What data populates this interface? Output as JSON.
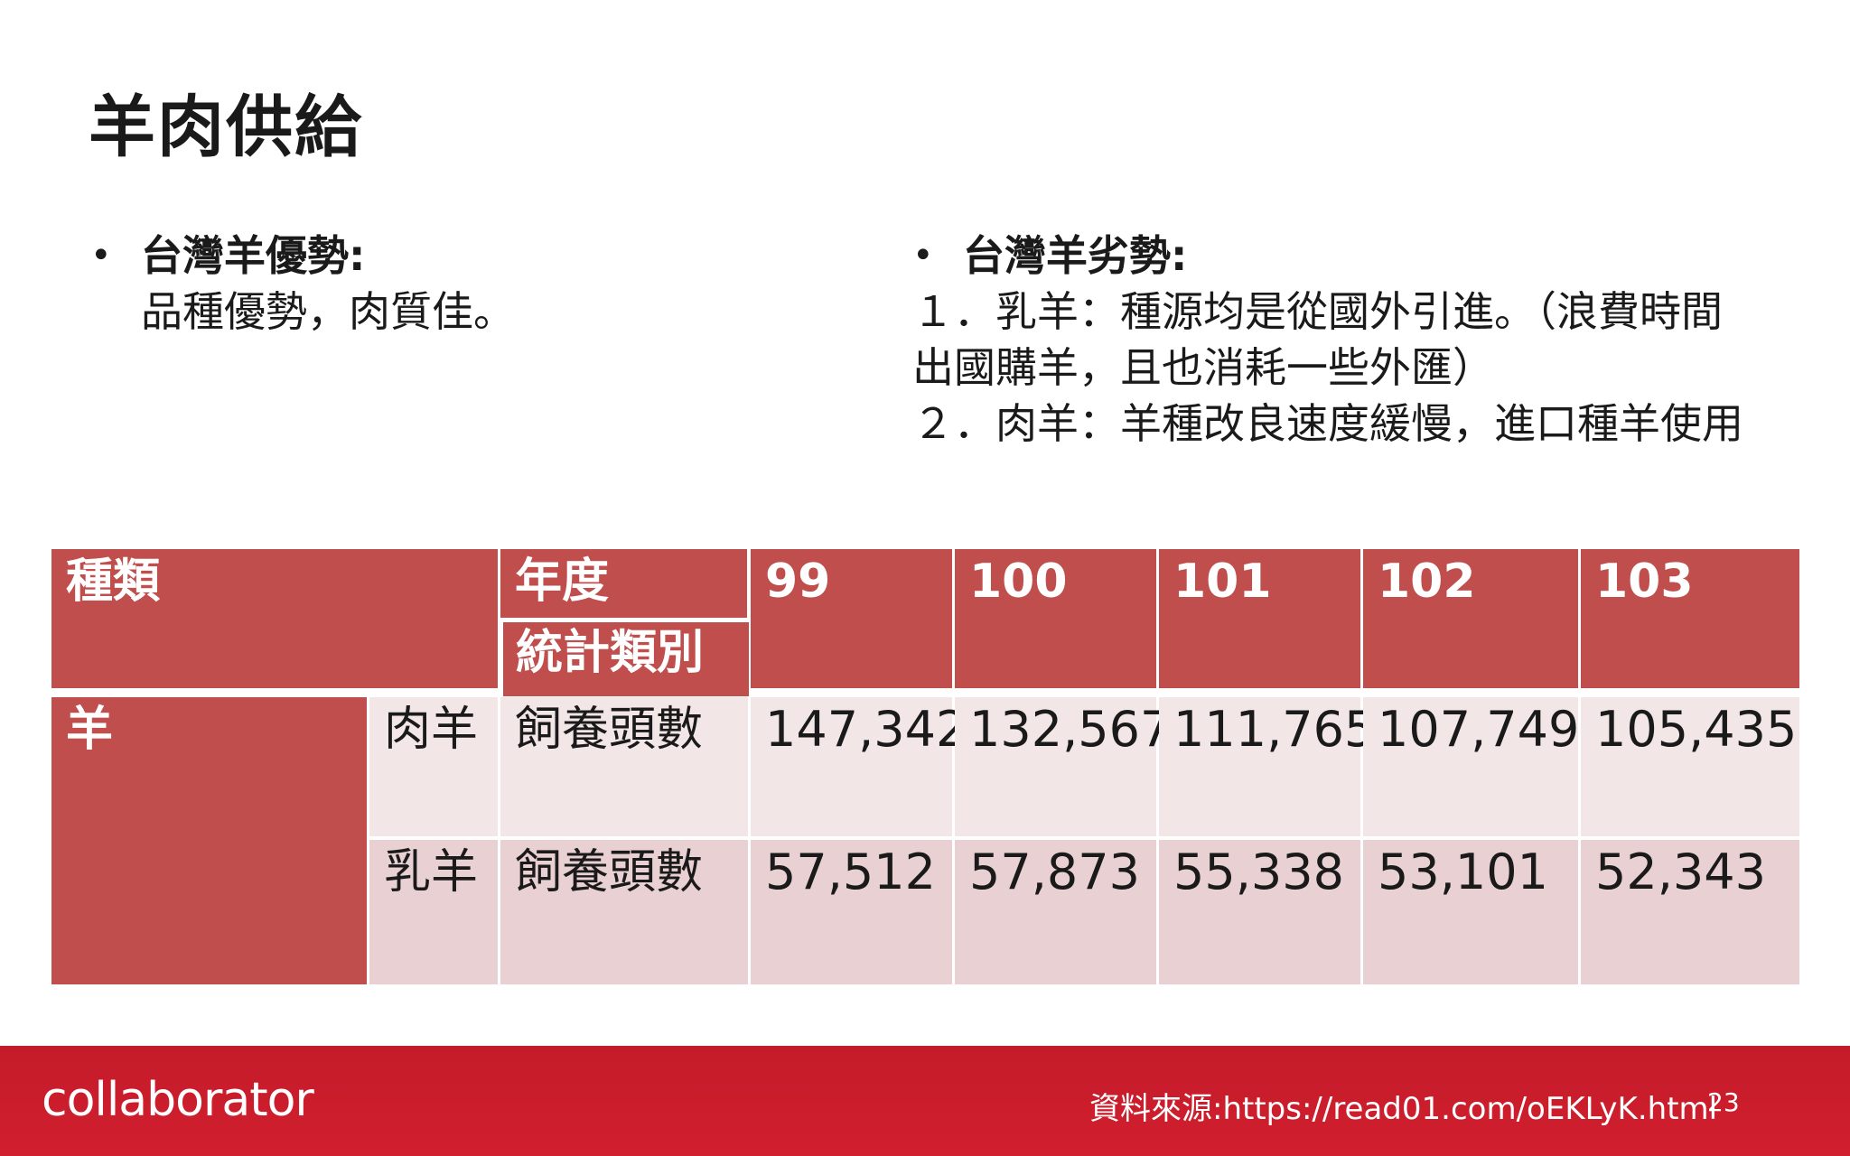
{
  "slide": {
    "title": "羊肉供給",
    "left": {
      "heading": "台灣羊優勢:",
      "body": "品種優勢，肉質佳。"
    },
    "right": {
      "heading": "台灣羊劣勢:",
      "body": "１．乳羊：種源均是從國外引進。（浪費時間出國購羊，且也消耗一些外匯）\n２．肉羊：羊種改良速度緩慢，進口種羊使用"
    }
  },
  "table": {
    "col_kind": "種類",
    "col_year": "年度",
    "col_stat": "統計類別",
    "years": [
      "99",
      "100",
      "101",
      "102",
      "103"
    ],
    "group": "羊",
    "rows": [
      {
        "subtype": "肉羊",
        "stat": "飼養頭數",
        "values": [
          "147,342",
          "132,567",
          "111,765",
          "107,749",
          "105,435"
        ]
      },
      {
        "subtype": "乳羊",
        "stat": "飼養頭數",
        "values": [
          "57,512",
          "57,873",
          "55,338",
          "53,101",
          "52,343"
        ]
      }
    ]
  },
  "footer": {
    "logo": "collaborator",
    "source": "資料來源:https://read01.com/oEKLyK.html",
    "page": "23"
  },
  "colors": {
    "header_red": "#bf4e4c",
    "row_light": "#f2e6e7",
    "row_mid": "#e9d0d2",
    "footer_red": "#c41b2a"
  }
}
